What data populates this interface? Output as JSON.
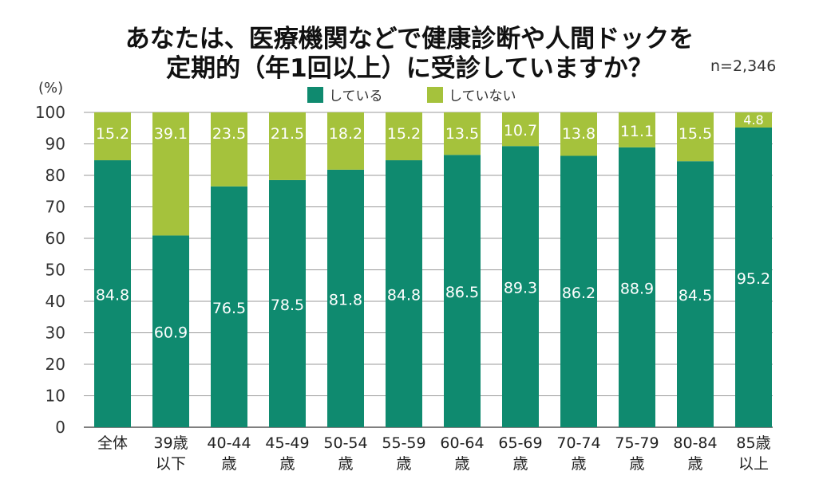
{
  "chart_data": {
    "type": "bar",
    "stacked": true,
    "title": [
      "あなたは、医療機関などで健康診断や人間ドックを",
      "定期的（年1回以上）に受診していますか？"
    ],
    "sample_size": "n=2,346",
    "ylabel": "(%)",
    "ylim": [
      0,
      100
    ],
    "yticks": [
      0,
      10,
      20,
      30,
      40,
      50,
      60,
      70,
      80,
      90,
      100
    ],
    "grid": true,
    "legend_position": "top",
    "categories": [
      [
        "全体",
        ""
      ],
      [
        "39歳",
        "以下"
      ],
      [
        "40-44",
        "歳"
      ],
      [
        "45-49",
        "歳"
      ],
      [
        "50-54",
        "歳"
      ],
      [
        "55-59",
        "歳"
      ],
      [
        "60-64",
        "歳"
      ],
      [
        "65-69",
        "歳"
      ],
      [
        "70-74",
        "歳"
      ],
      [
        "75-79",
        "歳"
      ],
      [
        "80-84",
        "歳"
      ],
      [
        "85歳",
        "以上"
      ]
    ],
    "series": [
      {
        "name": "している",
        "color": "#0f8a6f",
        "values": [
          84.8,
          60.9,
          76.5,
          78.5,
          81.8,
          84.8,
          86.5,
          89.3,
          86.2,
          88.9,
          84.5,
          95.2
        ]
      },
      {
        "name": "していない",
        "color": "#a5c23c",
        "values": [
          15.2,
          39.1,
          23.5,
          21.5,
          18.2,
          15.2,
          13.5,
          10.7,
          13.8,
          11.1,
          15.5,
          4.8
        ]
      }
    ]
  }
}
